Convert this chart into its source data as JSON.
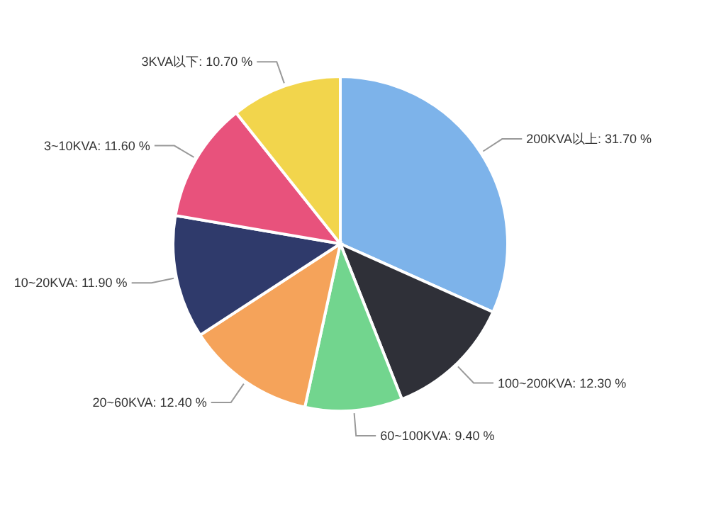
{
  "chart_data": {
    "type": "pie",
    "categories": [
      "200KVA以上",
      "100~200KVA",
      "60~100KVA",
      "20~60KVA",
      "10~20KVA",
      "3~10KVA",
      "3KVA以下"
    ],
    "values": [
      31.7,
      12.3,
      9.4,
      12.4,
      11.9,
      11.6,
      10.7
    ],
    "value_labels": [
      "31.70 %",
      "12.30 %",
      "9.40 %",
      "12.40 %",
      "11.90 %",
      "11.60 %",
      "10.70 %"
    ],
    "colors": [
      "#7db3ea",
      "#2f3038",
      "#72d58e",
      "#f5a35a",
      "#2f3a6b",
      "#e8527c",
      "#f2d54c"
    ]
  }
}
